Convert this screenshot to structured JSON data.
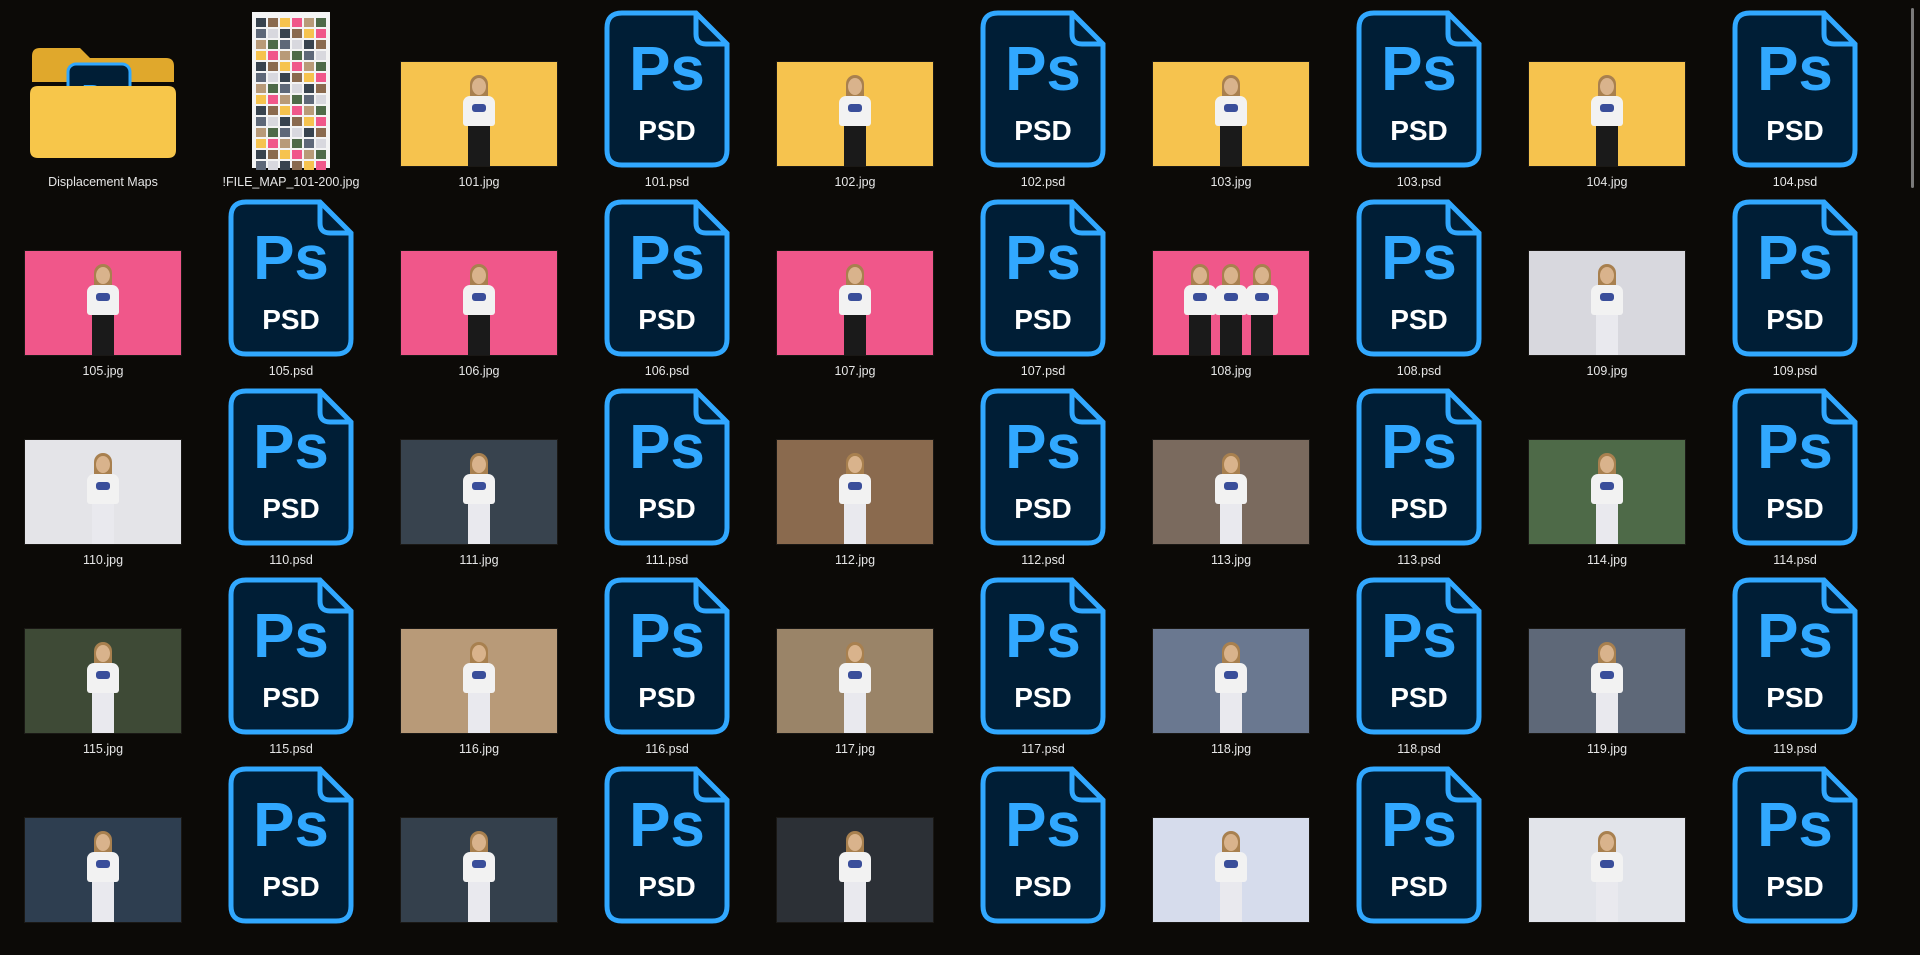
{
  "items": [
    {
      "name": "Displacement Maps",
      "kind": "folder"
    },
    {
      "name": "!FILE_MAP_101-200.jpg",
      "kind": "sheet"
    },
    {
      "name": "101.jpg",
      "kind": "photo",
      "bg": "#f6c34e",
      "legs": "dark"
    },
    {
      "name": "101.psd",
      "kind": "psd"
    },
    {
      "name": "102.jpg",
      "kind": "photo",
      "bg": "#f6c34e",
      "legs": "dark"
    },
    {
      "name": "102.psd",
      "kind": "psd"
    },
    {
      "name": "103.jpg",
      "kind": "photo",
      "bg": "#f6c34e",
      "legs": "dark"
    },
    {
      "name": "103.psd",
      "kind": "psd"
    },
    {
      "name": "104.jpg",
      "kind": "photo",
      "bg": "#f6c34e",
      "legs": "dark"
    },
    {
      "name": "104.psd",
      "kind": "psd"
    },
    {
      "name": "105.jpg",
      "kind": "photo",
      "bg": "#f0578a",
      "legs": "dark"
    },
    {
      "name": "105.psd",
      "kind": "psd"
    },
    {
      "name": "106.jpg",
      "kind": "photo",
      "bg": "#f0578a",
      "legs": "dark"
    },
    {
      "name": "106.psd",
      "kind": "psd"
    },
    {
      "name": "107.jpg",
      "kind": "photo",
      "bg": "#f0578a",
      "legs": "dark"
    },
    {
      "name": "107.psd",
      "kind": "psd"
    },
    {
      "name": "108.jpg",
      "kind": "photo",
      "bg": "#f0578a",
      "legs": "dark",
      "group": true
    },
    {
      "name": "108.psd",
      "kind": "psd"
    },
    {
      "name": "109.jpg",
      "kind": "photo",
      "bg": "#d8d8de",
      "legs": "white"
    },
    {
      "name": "109.psd",
      "kind": "psd"
    },
    {
      "name": "110.jpg",
      "kind": "photo",
      "bg": "#e4e4e8",
      "legs": "white"
    },
    {
      "name": "110.psd",
      "kind": "psd"
    },
    {
      "name": "111.jpg",
      "kind": "photo",
      "bg": "#38434e",
      "legs": "white"
    },
    {
      "name": "111.psd",
      "kind": "psd"
    },
    {
      "name": "112.jpg",
      "kind": "photo",
      "bg": "#8a6a4e",
      "legs": "white"
    },
    {
      "name": "112.psd",
      "kind": "psd"
    },
    {
      "name": "113.jpg",
      "kind": "photo",
      "bg": "#7a6a5e",
      "legs": "white"
    },
    {
      "name": "113.psd",
      "kind": "psd"
    },
    {
      "name": "114.jpg",
      "kind": "photo",
      "bg": "#4e6a48",
      "legs": "white"
    },
    {
      "name": "114.psd",
      "kind": "psd"
    },
    {
      "name": "115.jpg",
      "kind": "photo",
      "bg": "#3e4a36",
      "legs": "white"
    },
    {
      "name": "115.psd",
      "kind": "psd"
    },
    {
      "name": "116.jpg",
      "kind": "photo",
      "bg": "#b89a78",
      "legs": "white"
    },
    {
      "name": "116.psd",
      "kind": "psd"
    },
    {
      "name": "117.jpg",
      "kind": "photo",
      "bg": "#9a8468",
      "legs": "white"
    },
    {
      "name": "117.psd",
      "kind": "psd"
    },
    {
      "name": "118.jpg",
      "kind": "photo",
      "bg": "#6a7890",
      "legs": "white"
    },
    {
      "name": "118.psd",
      "kind": "psd"
    },
    {
      "name": "119.jpg",
      "kind": "photo",
      "bg": "#5e6878",
      "legs": "white"
    },
    {
      "name": "119.psd",
      "kind": "psd"
    },
    {
      "name": "",
      "kind": "photo",
      "bg": "#2e3e50",
      "legs": "white"
    },
    {
      "name": "",
      "kind": "psd"
    },
    {
      "name": "",
      "kind": "photo",
      "bg": "#34404c",
      "legs": "white"
    },
    {
      "name": "",
      "kind": "psd"
    },
    {
      "name": "",
      "kind": "photo",
      "bg": "#2c3036",
      "legs": "white"
    },
    {
      "name": "",
      "kind": "psd"
    },
    {
      "name": "",
      "kind": "photo",
      "bg": "#d6dcec",
      "legs": "white"
    },
    {
      "name": "",
      "kind": "psd"
    },
    {
      "name": "",
      "kind": "photo",
      "bg": "#e2e4ea",
      "legs": "white"
    },
    {
      "name": "",
      "kind": "psd"
    }
  ],
  "psd_icon": {
    "text_top": "Ps",
    "text_bottom": "PSD",
    "fill": "#001e36",
    "stroke": "#31a8ff",
    "text_color": "#31a8ff"
  },
  "folder_badge": "Ps",
  "colors": {
    "background": "#0c0a07",
    "label": "#e6e6e6",
    "folder": "#f5c244"
  }
}
